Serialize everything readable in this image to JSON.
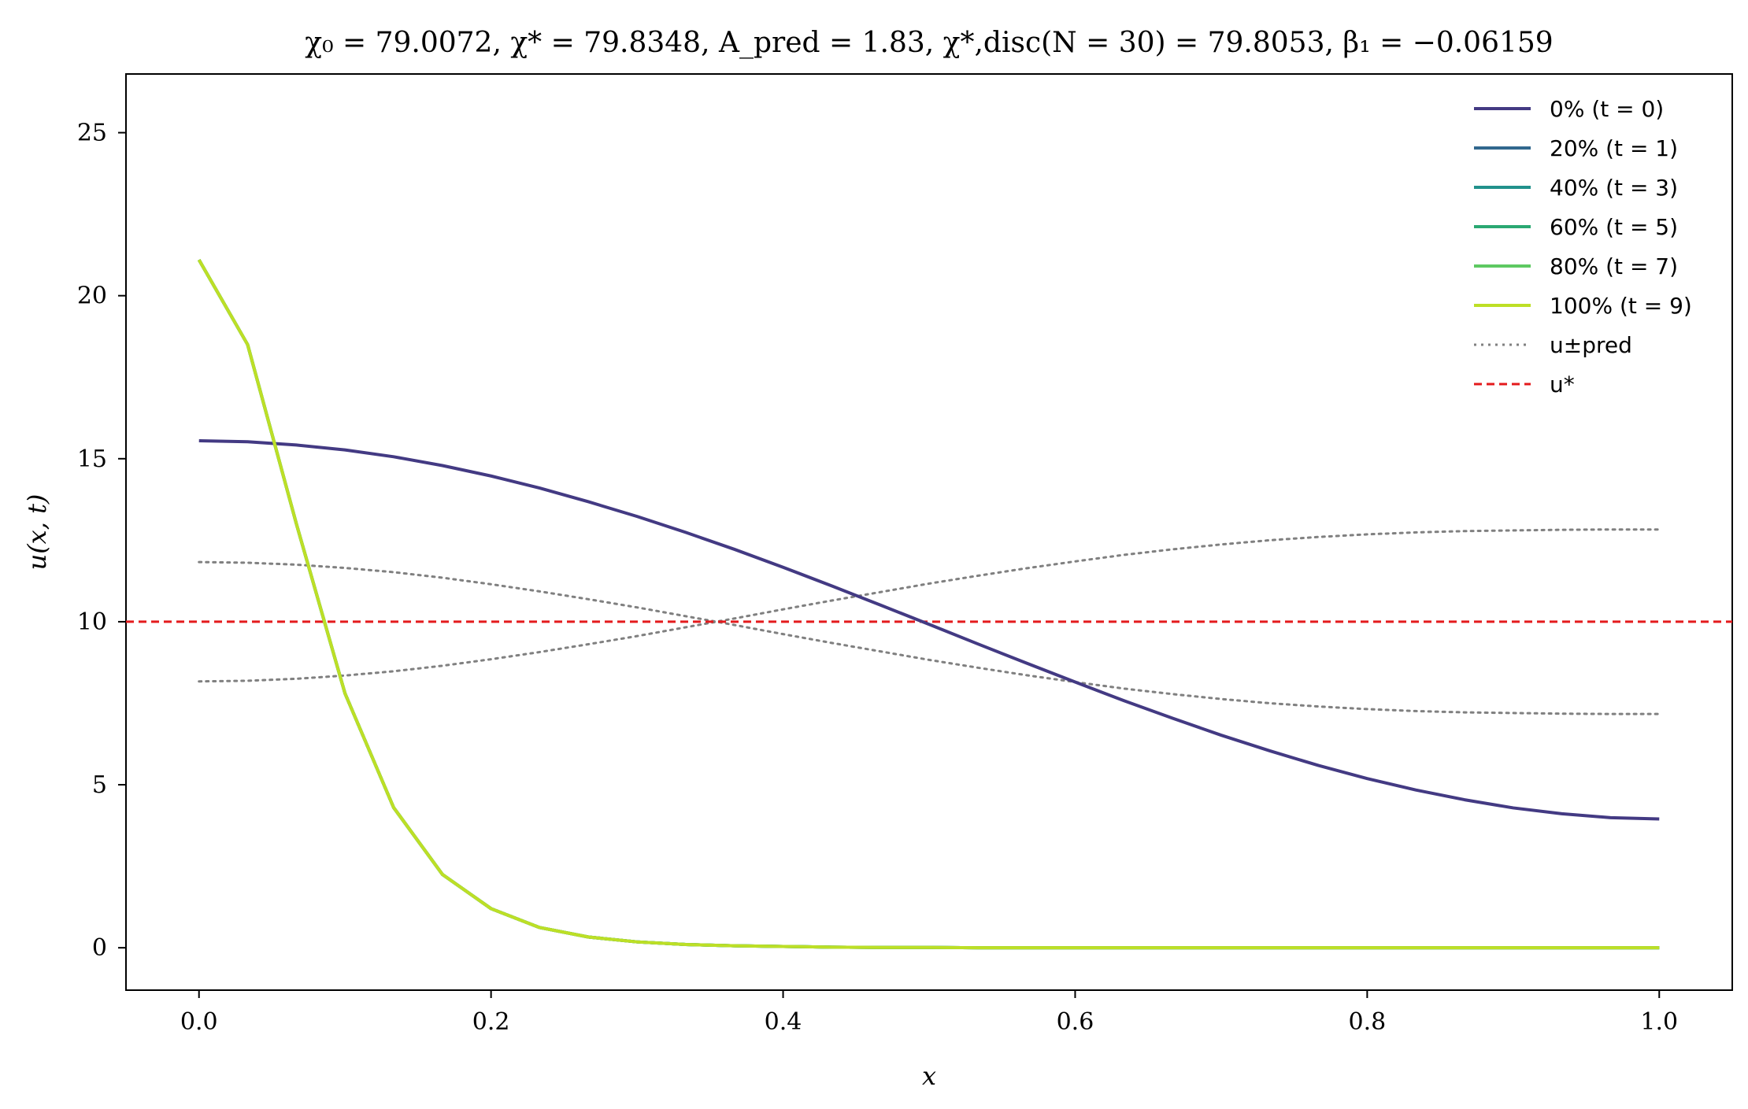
{
  "chart_data": {
    "type": "line",
    "title": "χ₀ = 79.0072,  χ* = 79.8348,  A_pred = 1.83,  χ*,disc(N = 30) = 79.8053,  β₁ = −0.06159",
    "xlabel": "x",
    "ylabel": "u(x, t)",
    "xlim": [
      -0.05,
      1.05
    ],
    "ylim": [
      -1.3,
      26.8
    ],
    "xticks": [
      0.0,
      0.2,
      0.4,
      0.6,
      0.8,
      1.0
    ],
    "xtick_labels": [
      "0.0",
      "0.2",
      "0.4",
      "0.6",
      "0.8",
      "1.0"
    ],
    "yticks": [
      0,
      5,
      10,
      15,
      20,
      25
    ],
    "ytick_labels": [
      "0",
      "5",
      "10",
      "15",
      "20",
      "25"
    ],
    "grid": false,
    "legend_position": "top-right",
    "x": [
      0.0,
      0.0333,
      0.0667,
      0.1,
      0.1333,
      0.1667,
      0.2,
      0.2333,
      0.2667,
      0.3,
      0.3333,
      0.3667,
      0.4,
      0.4333,
      0.4667,
      0.5,
      0.5333,
      0.5667,
      0.6,
      0.6333,
      0.6667,
      0.7,
      0.7333,
      0.7667,
      0.8,
      0.8333,
      0.8667,
      0.9,
      0.9333,
      0.9667,
      1.0
    ],
    "series": [
      {
        "name": "0% (t = 0)",
        "color": "#433a83",
        "style": "solid",
        "values": [
          15.55,
          15.52,
          15.42,
          15.27,
          15.06,
          14.79,
          14.47,
          14.1,
          13.68,
          13.23,
          12.74,
          12.22,
          11.67,
          11.1,
          10.51,
          9.92,
          9.32,
          8.73,
          8.15,
          7.58,
          7.04,
          6.52,
          6.04,
          5.59,
          5.19,
          4.84,
          4.54,
          4.29,
          4.11,
          3.99,
          3.95
        ]
      },
      {
        "name": "20% (t = 1)",
        "color": "#31688e",
        "style": "solid",
        "values": [
          21.1,
          18.5,
          13.0,
          7.8,
          4.3,
          2.25,
          1.2,
          0.62,
          0.33,
          0.18,
          0.1,
          0.06,
          0.04,
          0.02,
          0.01,
          0.01,
          0.0,
          0.0,
          0.0,
          0.0,
          0.0,
          0.0,
          0.0,
          0.0,
          0.0,
          0.0,
          0.0,
          0.0,
          0.0,
          0.0,
          0.0
        ]
      },
      {
        "name": "40% (t = 3)",
        "color": "#21918c",
        "style": "solid",
        "values": [
          21.1,
          18.5,
          13.0,
          7.8,
          4.3,
          2.25,
          1.2,
          0.62,
          0.33,
          0.18,
          0.1,
          0.06,
          0.04,
          0.02,
          0.01,
          0.01,
          0.0,
          0.0,
          0.0,
          0.0,
          0.0,
          0.0,
          0.0,
          0.0,
          0.0,
          0.0,
          0.0,
          0.0,
          0.0,
          0.0,
          0.0
        ]
      },
      {
        "name": "60% (t = 5)",
        "color": "#2aa872",
        "style": "solid",
        "values": [
          21.1,
          18.5,
          13.0,
          7.8,
          4.3,
          2.25,
          1.2,
          0.62,
          0.33,
          0.18,
          0.1,
          0.06,
          0.04,
          0.02,
          0.01,
          0.01,
          0.0,
          0.0,
          0.0,
          0.0,
          0.0,
          0.0,
          0.0,
          0.0,
          0.0,
          0.0,
          0.0,
          0.0,
          0.0,
          0.0,
          0.0
        ]
      },
      {
        "name": "80% (t = 7)",
        "color": "#5ec962",
        "style": "solid",
        "values": [
          21.1,
          18.5,
          13.0,
          7.8,
          4.3,
          2.25,
          1.2,
          0.62,
          0.33,
          0.18,
          0.1,
          0.06,
          0.04,
          0.02,
          0.01,
          0.01,
          0.0,
          0.0,
          0.0,
          0.0,
          0.0,
          0.0,
          0.0,
          0.0,
          0.0,
          0.0,
          0.0,
          0.0,
          0.0,
          0.0,
          0.0
        ]
      },
      {
        "name": "100% (t = 9)",
        "color": "#bddf26",
        "style": "solid",
        "values": [
          21.1,
          18.5,
          13.0,
          7.8,
          4.3,
          2.25,
          1.2,
          0.62,
          0.33,
          0.18,
          0.1,
          0.06,
          0.04,
          0.02,
          0.01,
          0.01,
          0.0,
          0.0,
          0.0,
          0.0,
          0.0,
          0.0,
          0.0,
          0.0,
          0.0,
          0.0,
          0.0,
          0.0,
          0.0,
          0.0,
          0.0
        ]
      },
      {
        "name": "u±pred (upper)",
        "color": "#808080",
        "style": "dotted",
        "values": [
          11.83,
          11.81,
          11.75,
          11.65,
          11.52,
          11.35,
          11.15,
          10.93,
          10.69,
          10.44,
          10.17,
          9.9,
          9.62,
          9.35,
          9.09,
          8.83,
          8.59,
          8.36,
          8.15,
          7.95,
          7.78,
          7.63,
          7.5,
          7.4,
          7.32,
          7.26,
          7.22,
          7.2,
          7.18,
          7.17,
          7.17
        ]
      },
      {
        "name": "u±pred (lower)",
        "color": "#808080",
        "style": "dotted",
        "values": [
          8.17,
          8.19,
          8.25,
          8.35,
          8.48,
          8.65,
          8.85,
          9.07,
          9.31,
          9.56,
          9.83,
          10.1,
          10.38,
          10.65,
          10.91,
          11.17,
          11.41,
          11.64,
          11.85,
          12.05,
          12.22,
          12.37,
          12.5,
          12.6,
          12.68,
          12.74,
          12.78,
          12.8,
          12.82,
          12.83,
          12.83
        ]
      },
      {
        "name": "u*",
        "color": "#e41a1c",
        "style": "dashed",
        "hline": 10.0
      }
    ],
    "legend": [
      {
        "label": "0% (t = 0)",
        "color": "#433a83",
        "style": "solid"
      },
      {
        "label": "20% (t = 1)",
        "color": "#31688e",
        "style": "solid"
      },
      {
        "label": "40% (t = 3)",
        "color": "#21918c",
        "style": "solid"
      },
      {
        "label": "60% (t = 5)",
        "color": "#2aa872",
        "style": "solid"
      },
      {
        "label": "80% (t = 7)",
        "color": "#5ec962",
        "style": "solid"
      },
      {
        "label": "100% (t = 9)",
        "color": "#bddf26",
        "style": "solid"
      },
      {
        "label": "u±pred",
        "color": "#808080",
        "style": "dotted"
      },
      {
        "label": "u*",
        "color": "#e41a1c",
        "style": "dashed"
      }
    ]
  }
}
